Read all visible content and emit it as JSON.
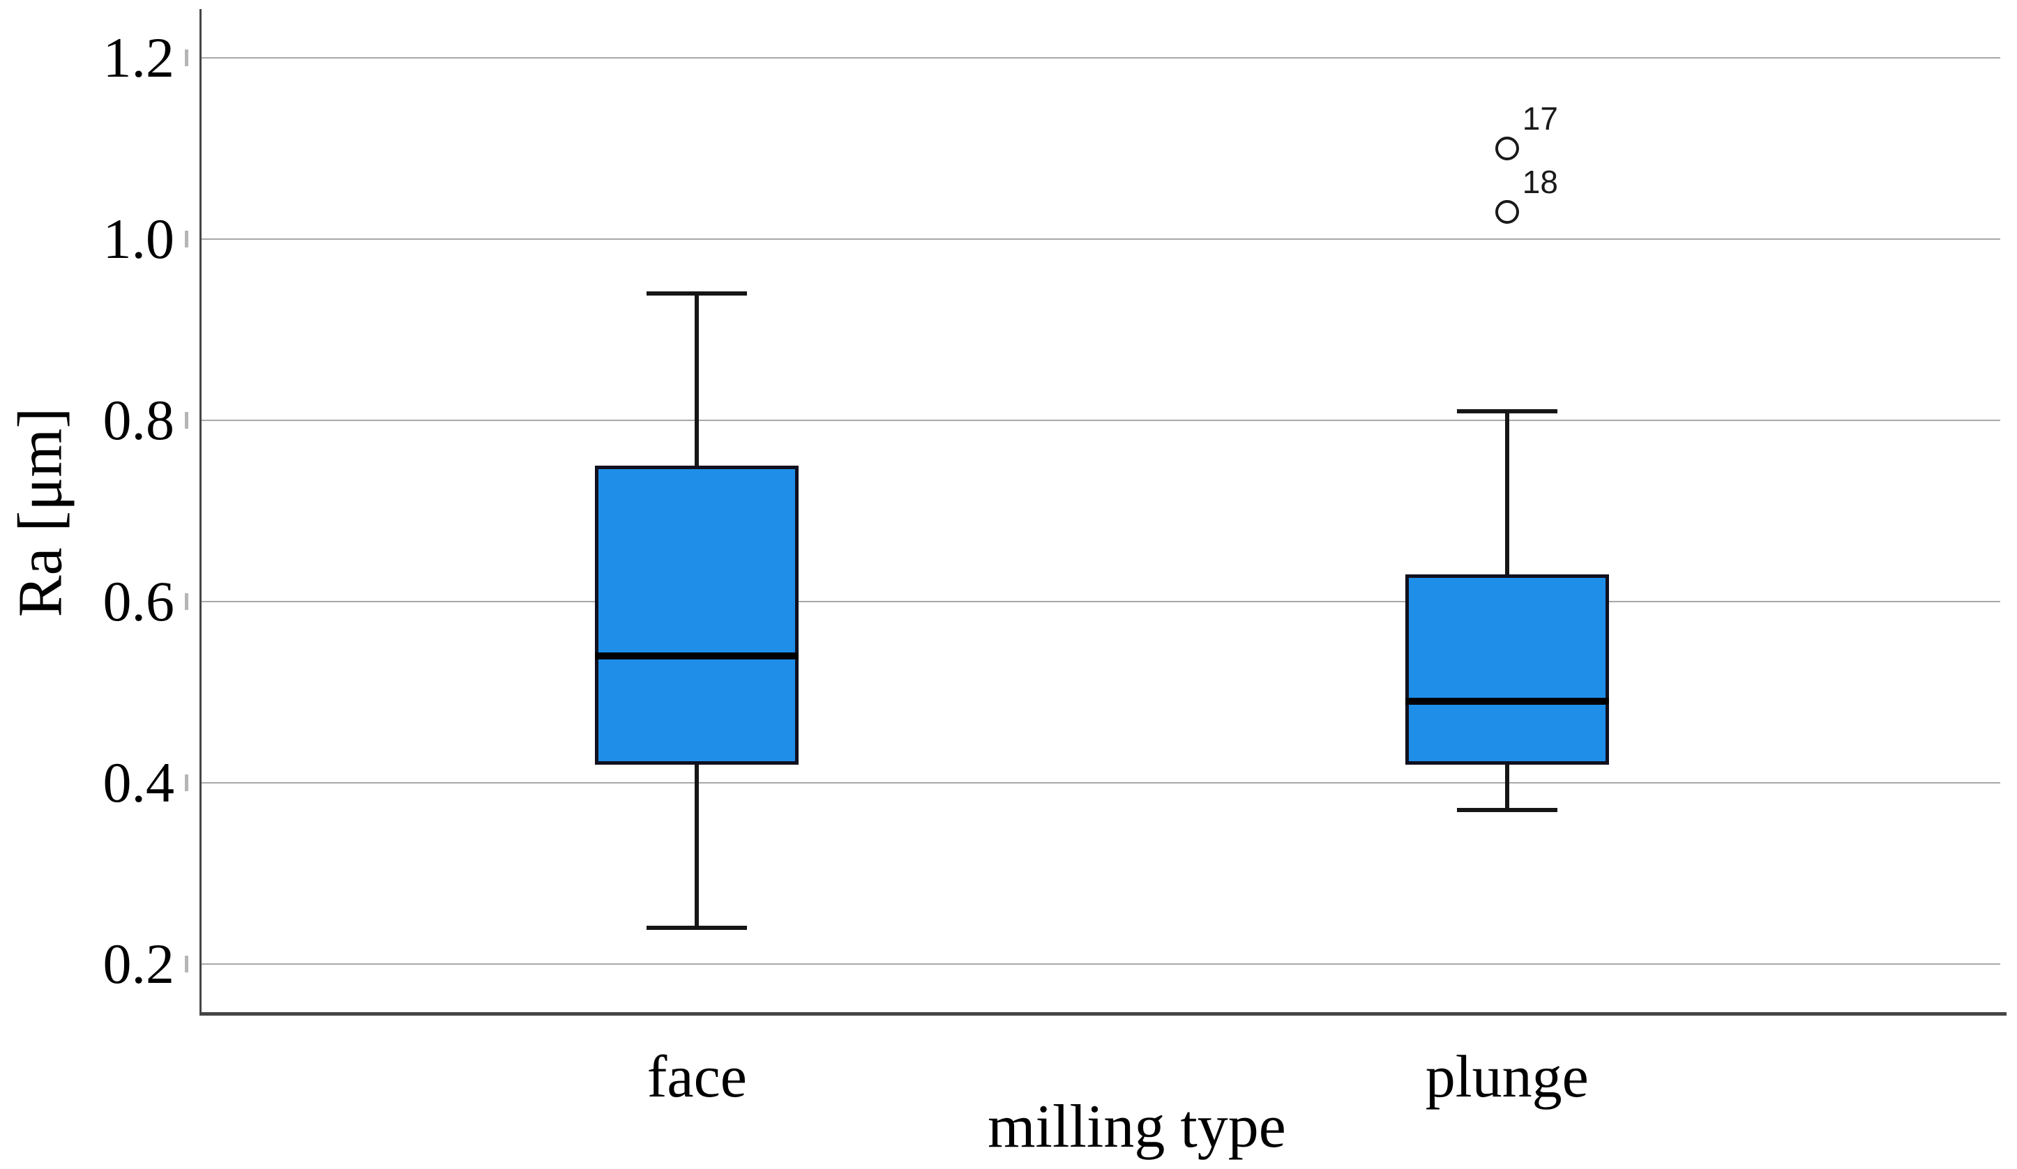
{
  "figure": {
    "background": "#ffffff"
  },
  "chart_data": {
    "type": "boxplot",
    "orientation": "vertical",
    "title": "",
    "xlabel": "milling type",
    "ylabel": "Ra [μm]",
    "categories": [
      "face",
      "plunge"
    ],
    "yticks": [
      0.2,
      0.4,
      0.6,
      0.8,
      1.0,
      1.2
    ],
    "ytick_labels": [
      "0.2",
      "0.4",
      "0.6",
      "0.8",
      "1.0",
      "1.2"
    ],
    "ylim": [
      0.147,
      1.254
    ],
    "grid": "horizontal-gridlines-on",
    "legend": "none",
    "series": [
      {
        "category": "face",
        "whisker_low": 0.24,
        "q1": 0.42,
        "median": 0.54,
        "q3": 0.75,
        "whisker_high": 0.94,
        "outliers": []
      },
      {
        "category": "plunge",
        "whisker_low": 0.37,
        "q1": 0.42,
        "median": 0.49,
        "q3": 0.63,
        "whisker_high": 0.81,
        "outliers": [
          {
            "label": "17",
            "value": 1.1
          },
          {
            "label": "18",
            "value": 1.03
          }
        ]
      }
    ],
    "style": {
      "box_fill": "#1f8ee9",
      "box_border": "#10101e",
      "median_color": "#000000",
      "whisker_color": "#161616",
      "grid_color": "#a8a8a8",
      "tick_color": "#b5b5b5",
      "axis_color": "#454545",
      "outlier_stroke": "#1a1a1a",
      "outlier_fill": "#ffffff",
      "text_color": "#000000"
    }
  }
}
